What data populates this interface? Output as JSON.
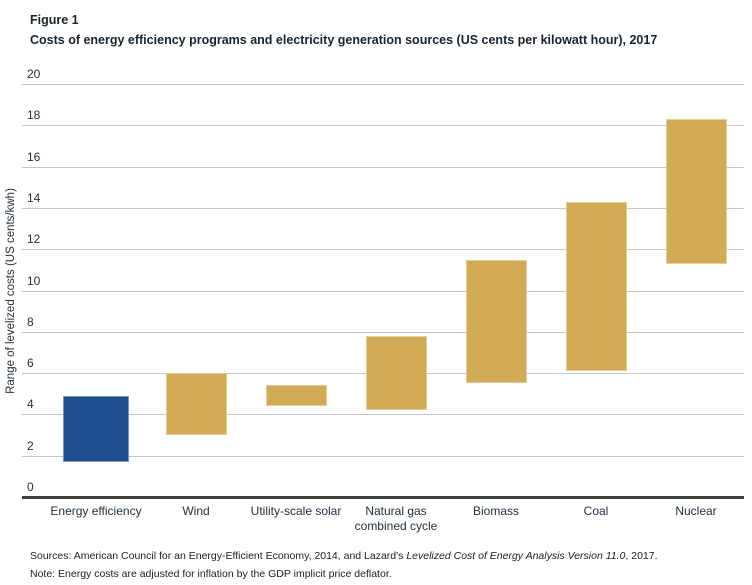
{
  "header": {
    "figure_label": "Figure 1",
    "title": "Costs of energy efficiency programs and electricity generation sources (US cents per kilowatt hour), 2017"
  },
  "chart_data": {
    "type": "bar",
    "subtype": "floating_range_columns",
    "title": "Costs of energy efficiency programs and electricity generation sources (US cents per kilowatt hour), 2017",
    "xlabel": "",
    "ylabel": "Range of levelized costs (US cents/kwh)",
    "ylim": [
      0,
      20
    ],
    "ytick_interval": 2,
    "ytick_labels": [
      "0",
      "2",
      "4",
      "6",
      "8",
      "10",
      "12",
      "14",
      "16",
      "18",
      "20"
    ],
    "grid": true,
    "legend": "none",
    "categories": [
      "Energy efficiency",
      "Wind",
      "Utility-scale solar",
      "Natural gas combined cycle",
      "Biomass",
      "Coal",
      "Nuclear"
    ],
    "series": [
      {
        "name": "Range of levelized costs (US cents/kwh)",
        "ranges": [
          [
            1.7,
            4.9
          ],
          [
            3.0,
            6.0
          ],
          [
            4.4,
            5.4
          ],
          [
            4.2,
            7.8
          ],
          [
            5.5,
            11.5
          ],
          [
            6.1,
            14.3
          ],
          [
            11.3,
            18.3
          ]
        ]
      }
    ],
    "bar_colors": [
      "#1d4f8f",
      "#d2ac55",
      "#d2ac55",
      "#d2ac55",
      "#d2ac55",
      "#d2ac55",
      "#d2ac55"
    ],
    "colors": {
      "energy_efficiency_blue": "#1d4f8f",
      "generation_gold": "#d2ac55",
      "gridline": "#c6c6c6",
      "axis_line": "#3d3d3d",
      "label_text": "#25313c"
    }
  },
  "footer": {
    "sources_prefix": "Sources: American Council for an Energy-Efficient Economy, 2014,  and Lazard's ",
    "sources_italic": "Levelized Cost of Energy Analysis Version 11.0",
    "sources_suffix": ", 2017.",
    "note": "Note: Energy costs are adjusted for inflation by the GDP implicit price deflator."
  }
}
